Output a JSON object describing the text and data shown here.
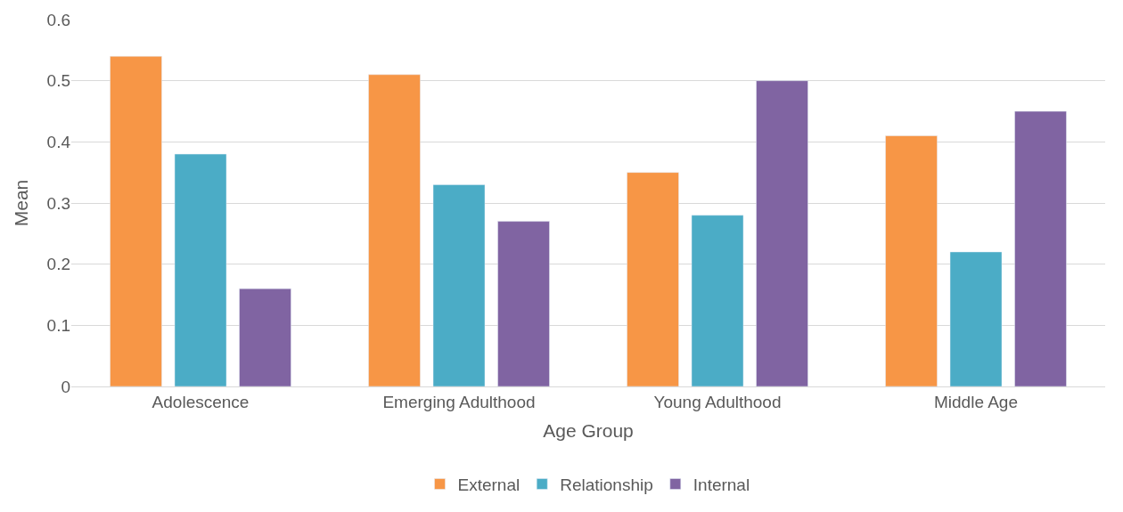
{
  "chart_data": {
    "type": "bar",
    "xlabel": "Age Group",
    "ylabel": "Mean",
    "categories": [
      "Adolescence",
      "Emerging Adulthood",
      "Young Adulthood",
      "Middle Age"
    ],
    "series": [
      {
        "name": "External",
        "color": "#f79646",
        "values": [
          0.54,
          0.51,
          0.35,
          0.41
        ]
      },
      {
        "name": "Relationship",
        "color": "#4bacc6",
        "values": [
          0.38,
          0.33,
          0.28,
          0.22
        ]
      },
      {
        "name": "Internal",
        "color": "#8064a2",
        "values": [
          0.16,
          0.27,
          0.5,
          0.45
        ]
      }
    ],
    "ylim": [
      0,
      0.6
    ],
    "yticks": [
      {
        "value": 0,
        "label": "0"
      },
      0.1,
      0.2,
      0.3,
      0.4,
      0.5,
      0.6
    ],
    "grid": "y",
    "legend": "bottom"
  }
}
